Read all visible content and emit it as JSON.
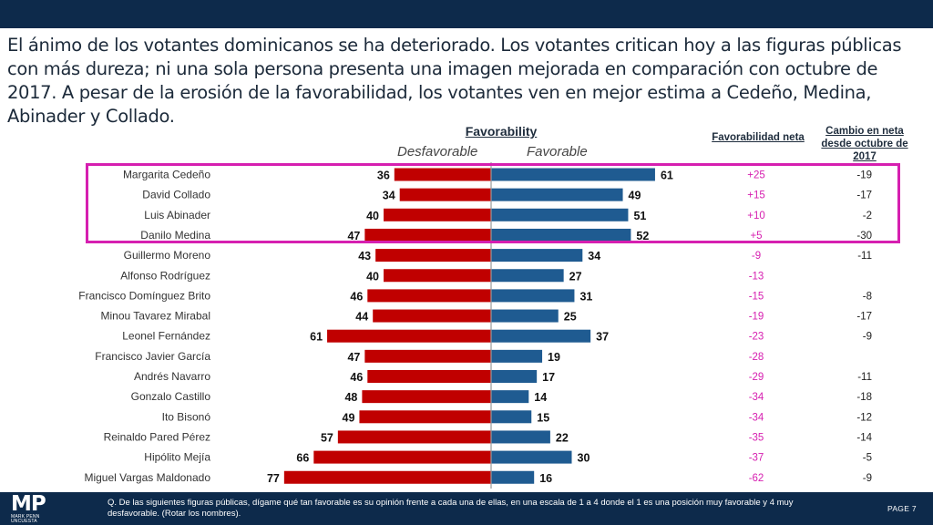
{
  "headline": "El ánimo de los votantes dominicanos se ha deteriorado. Los votantes critican hoy a las figuras públicas con más dureza; ni una sola persona presenta una imagen mejorada en comparación con octubre de 2017. A pesar de la erosión de la favorabilidad, los votantes ven en mejor estima a Cedeño, Medina, Abinader y Collado.",
  "chart_data": {
    "type": "bar",
    "orientation": "horizontal-diverging",
    "title": "Favorability",
    "left_label": "Desfavorable",
    "right_label": "Favorable",
    "net_header": "Favorabilidad neta",
    "change_header": "Cambio en neta desde octubre de 2017",
    "categories": [
      "Margarita Cedeño",
      "David Collado",
      "Luis Abinader",
      "Danilo Medina",
      "Guillermo Moreno",
      "Alfonso Rodríguez",
      "Francisco Domínguez Brito",
      "Minou Tavarez Mirabal",
      "Leonel Fernández",
      "Francisco Javier García",
      "Andrés Navarro",
      "Gonzalo Castillo",
      "Ito Bisonó",
      "Reinaldo Pared Pérez",
      "Hipólito Mejía",
      "Miguel Vargas Maldonado"
    ],
    "series": [
      {
        "name": "Desfavorable",
        "values": [
          36,
          34,
          40,
          47,
          43,
          40,
          46,
          44,
          61,
          47,
          46,
          48,
          49,
          57,
          66,
          77
        ]
      },
      {
        "name": "Favorable",
        "values": [
          61,
          49,
          51,
          52,
          34,
          27,
          31,
          25,
          37,
          19,
          17,
          14,
          15,
          22,
          30,
          16
        ]
      }
    ],
    "net": [
      "+25",
      "+15",
      "+10",
      "+5",
      "-9",
      "-13",
      "-15",
      "-19",
      "-23",
      "-28",
      "-29",
      "-34",
      "-34",
      "-35",
      "-37",
      "-62"
    ],
    "change": [
      "-19",
      "-17",
      "-2",
      "-30",
      "-11",
      "",
      "-8",
      "-17",
      "-9",
      "",
      "-11",
      "-18",
      "-12",
      "-14",
      "-5",
      "-9"
    ],
    "highlighted_rows": 4,
    "colors": {
      "unfavorable": "#c00000",
      "favorable": "#1f5b91",
      "net_text": "#d61fb0",
      "highlight": "#d61fb0"
    }
  },
  "footer": {
    "logo": "MP",
    "logo_sub": "MARK PENN UNCUESTA",
    "footnote": "Q. De las siguientes figuras públicas, dígame qué tan favorable es su opinión frente a cada una de ellas, en una escala de 1 a 4 donde el 1 es una posición muy favorable y 4 muy desfavorable. (Rotar los nombres).",
    "page": "PAGE  7"
  },
  "colors": {
    "top_bar": "#0d2a4b",
    "bottom_bar": "#0d2a4b"
  }
}
